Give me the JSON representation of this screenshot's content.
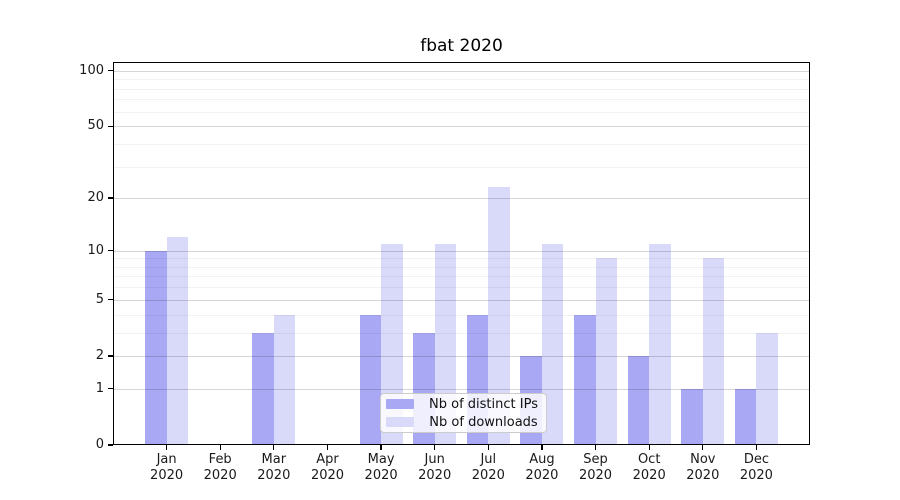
{
  "chart_data": {
    "type": "bar",
    "title": "fbat 2020",
    "xlabel": "",
    "ylabel": "",
    "categories": [
      "Jan",
      "Feb",
      "Mar",
      "Apr",
      "May",
      "Jun",
      "Jul",
      "Aug",
      "Sep",
      "Oct",
      "Nov",
      "Dec"
    ],
    "category_year": "2020",
    "series": [
      {
        "name": "Nb of distinct IPs",
        "color": "#a8a8f5",
        "values": [
          10,
          0,
          3,
          0,
          4,
          3,
          4,
          2,
          4,
          2,
          1,
          1
        ]
      },
      {
        "name": "Nb of downloads",
        "color": "#d9d9f9",
        "values": [
          12,
          0,
          4,
          0,
          11,
          11,
          23,
          11,
          9,
          11,
          9,
          3
        ]
      }
    ],
    "yscale": "symlog",
    "ylim": [
      0,
      111.5
    ],
    "yticks": [
      0,
      1,
      2,
      5,
      10,
      20,
      50,
      100
    ],
    "yticks_minor": [
      3,
      4,
      6,
      7,
      8,
      9,
      30,
      40,
      60,
      70,
      80,
      90
    ],
    "grid": "on",
    "legend_position": "lower center"
  }
}
